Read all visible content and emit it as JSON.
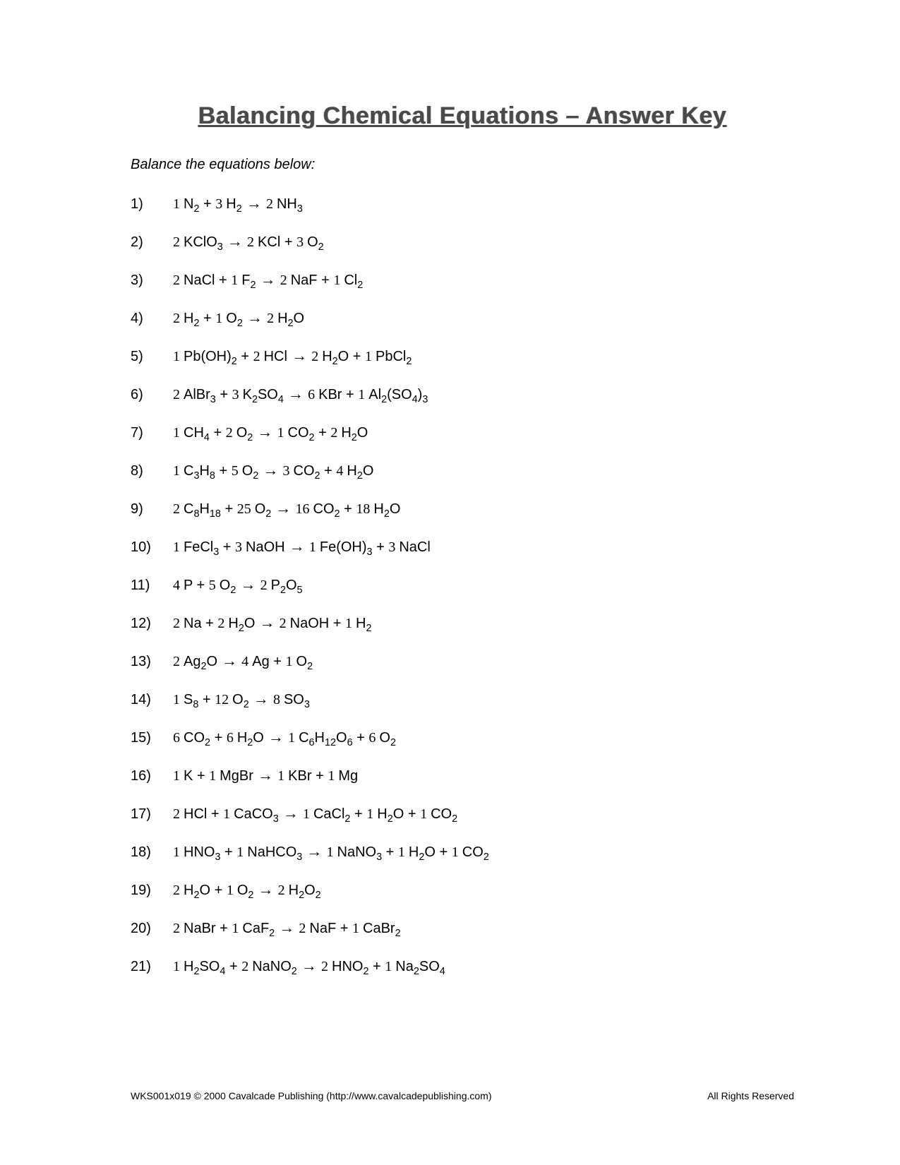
{
  "title": "Balancing Chemical Equations – Answer Key",
  "instruction": "Balance the equations below:",
  "typography": {
    "title_fontsize": 34,
    "title_color": "#4a4a4a",
    "body_fontsize": 20,
    "footer_fontsize": 14,
    "background_color": "#ffffff",
    "text_color": "#000000",
    "coefficient_font": "handwritten/cursive"
  },
  "equations": [
    {
      "num": "1)",
      "terms": [
        {
          "c": "1",
          "f": "N",
          "sub": "2"
        },
        {
          "op": "+"
        },
        {
          "c": "3",
          "f": "H",
          "sub": "2"
        },
        {
          "op": "→"
        },
        {
          "c": "2",
          "f": "NH",
          "sub": "3"
        }
      ]
    },
    {
      "num": "2)",
      "terms": [
        {
          "c": "2",
          "f": "KClO",
          "sub": "3"
        },
        {
          "op": "→"
        },
        {
          "c": "2",
          "f": "KCl"
        },
        {
          "op": "+"
        },
        {
          "c": "3",
          "f": "O",
          "sub": "2"
        }
      ]
    },
    {
      "num": "3)",
      "terms": [
        {
          "c": "2",
          "f": "NaCl"
        },
        {
          "op": "+"
        },
        {
          "c": "1",
          "f": "F",
          "sub": "2"
        },
        {
          "op": "→"
        },
        {
          "c": "2",
          "f": "NaF"
        },
        {
          "op": "+"
        },
        {
          "c": "1",
          "f": "Cl",
          "sub": "2"
        }
      ]
    },
    {
      "num": "4)",
      "terms": [
        {
          "c": "2",
          "f": "H",
          "sub": "2"
        },
        {
          "op": "+"
        },
        {
          "c": "1",
          "f": "O",
          "sub": "2"
        },
        {
          "op": "→"
        },
        {
          "c": "2",
          "f": "H",
          "sub": "2",
          "f2": "O"
        }
      ]
    },
    {
      "num": "5)",
      "terms": [
        {
          "c": "1",
          "f": "Pb(OH)",
          "sub": "2"
        },
        {
          "op": "+"
        },
        {
          "c": "2",
          "f": "HCl"
        },
        {
          "op": "→"
        },
        {
          "c": "2",
          "f": "H",
          "sub": "2",
          "f2": "O"
        },
        {
          "op": "+"
        },
        {
          "c": "1",
          "f": "PbCl",
          "sub": "2"
        }
      ]
    },
    {
      "num": "6)",
      "terms": [
        {
          "c": "2",
          "f": "AlBr",
          "sub": "3"
        },
        {
          "op": "+"
        },
        {
          "c": "3",
          "f": "K",
          "sub": "2",
          "f2": "SO",
          "sub2": "4"
        },
        {
          "op": "→"
        },
        {
          "c": "6",
          "f": "KBr"
        },
        {
          "op": "+"
        },
        {
          "c": "1",
          "f": "Al",
          "sub": "2",
          "f2": "(SO",
          "sub2": "4",
          "f3": ")",
          "sub3": "3"
        }
      ]
    },
    {
      "num": "7)",
      "terms": [
        {
          "c": "1",
          "f": "CH",
          "sub": "4"
        },
        {
          "op": "+"
        },
        {
          "c": "2",
          "f": "O",
          "sub": "2"
        },
        {
          "op": "→"
        },
        {
          "c": "1",
          "f": "CO",
          "sub": "2"
        },
        {
          "op": "+"
        },
        {
          "c": "2",
          "f": "H",
          "sub": "2",
          "f2": "O"
        }
      ]
    },
    {
      "num": "8)",
      "terms": [
        {
          "c": "1",
          "f": "C",
          "sub": "3",
          "f2": "H",
          "sub2": "8"
        },
        {
          "op": "+"
        },
        {
          "c": "5",
          "f": "O",
          "sub": "2"
        },
        {
          "op": "→"
        },
        {
          "c": "3",
          "f": "CO",
          "sub": "2"
        },
        {
          "op": "+"
        },
        {
          "c": "4",
          "f": "H",
          "sub": "2",
          "f2": "O"
        }
      ]
    },
    {
      "num": "9)",
      "terms": [
        {
          "c": "2",
          "f": "C",
          "sub": "8",
          "f2": "H",
          "sub2": "18"
        },
        {
          "op": "+"
        },
        {
          "c": "25",
          "f": "O",
          "sub": "2"
        },
        {
          "op": "→"
        },
        {
          "c": "16",
          "f": "CO",
          "sub": "2"
        },
        {
          "op": "+"
        },
        {
          "c": "18",
          "f": "H",
          "sub": "2",
          "f2": "O"
        }
      ]
    },
    {
      "num": "10)",
      "terms": [
        {
          "c": "1",
          "f": "FeCl",
          "sub": "3"
        },
        {
          "op": "+"
        },
        {
          "c": "3",
          "f": "NaOH"
        },
        {
          "op": "→"
        },
        {
          "c": "1",
          "f": "Fe(OH)",
          "sub": "3"
        },
        {
          "op": "+"
        },
        {
          "c": "3",
          "f": "NaCl"
        }
      ]
    },
    {
      "num": "11)",
      "terms": [
        {
          "c": "4",
          "f": "P"
        },
        {
          "op": "+"
        },
        {
          "c": "5",
          "f": "O",
          "sub": "2"
        },
        {
          "op": "→"
        },
        {
          "c": "2",
          "f": "P",
          "sub": "2",
          "f2": "O",
          "sub2": "5"
        }
      ]
    },
    {
      "num": "12)",
      "terms": [
        {
          "c": "2",
          "f": "Na"
        },
        {
          "op": "+"
        },
        {
          "c": "2",
          "f": "H",
          "sub": "2",
          "f2": "O"
        },
        {
          "op": "→"
        },
        {
          "c": "2",
          "f": "NaOH"
        },
        {
          "op": "+"
        },
        {
          "c": "1",
          "f": "H",
          "sub": "2"
        }
      ]
    },
    {
      "num": "13)",
      "terms": [
        {
          "c": "2",
          "f": "Ag",
          "sub": "2",
          "f2": "O"
        },
        {
          "op": "→"
        },
        {
          "c": "4",
          "f": "Ag"
        },
        {
          "op": "+"
        },
        {
          "c": "1",
          "f": "O",
          "sub": "2"
        }
      ]
    },
    {
      "num": "14)",
      "terms": [
        {
          "c": "1",
          "f": "S",
          "sub": "8"
        },
        {
          "op": "+"
        },
        {
          "c": "12",
          "f": "O",
          "sub": "2"
        },
        {
          "op": "→"
        },
        {
          "c": "8",
          "f": "SO",
          "sub": "3"
        }
      ]
    },
    {
      "num": "15)",
      "terms": [
        {
          "c": "6",
          "f": "CO",
          "sub": "2"
        },
        {
          "op": "+"
        },
        {
          "c": "6",
          "f": "H",
          "sub": "2",
          "f2": "O"
        },
        {
          "op": "→"
        },
        {
          "c": "1",
          "f": "C",
          "sub": "6",
          "f2": "H",
          "sub2": "12",
          "f3": "O",
          "sub3": "6"
        },
        {
          "op": "+"
        },
        {
          "c": "6",
          "f": "O",
          "sub": "2"
        }
      ]
    },
    {
      "num": "16)",
      "terms": [
        {
          "c": "1",
          "f": "K"
        },
        {
          "op": "+"
        },
        {
          "c": "1",
          "f": "MgBr"
        },
        {
          "op": "→"
        },
        {
          "c": "1",
          "f": "KBr"
        },
        {
          "op": "+"
        },
        {
          "c": "1",
          "f": "Mg"
        }
      ]
    },
    {
      "num": "17)",
      "terms": [
        {
          "c": "2",
          "f": "HCl"
        },
        {
          "op": "+"
        },
        {
          "c": "1",
          "f": "CaCO",
          "sub": "3"
        },
        {
          "op": "→"
        },
        {
          "c": "1",
          "f": "CaCl",
          "sub": "2"
        },
        {
          "op": "+"
        },
        {
          "c": "1",
          "f": "H",
          "sub": "2",
          "f2": "O"
        },
        {
          "op": "+"
        },
        {
          "c": "1",
          "f": "CO",
          "sub": "2"
        }
      ]
    },
    {
      "num": "18)",
      "terms": [
        {
          "c": "1",
          "f": "HNO",
          "sub": "3"
        },
        {
          "op": "+"
        },
        {
          "c": "1",
          "f": "NaHCO",
          "sub": "3"
        },
        {
          "op": "→"
        },
        {
          "c": "1",
          "f": "NaNO",
          "sub": "3"
        },
        {
          "op": "+"
        },
        {
          "c": "1",
          "f": "H",
          "sub": "2",
          "f2": "O"
        },
        {
          "op": "+"
        },
        {
          "c": "1",
          "f": "CO",
          "sub": "2"
        }
      ]
    },
    {
      "num": "19)",
      "terms": [
        {
          "c": "2",
          "f": "H",
          "sub": "2",
          "f2": "O"
        },
        {
          "op": "+"
        },
        {
          "c": "1",
          "f": "O",
          "sub": "2"
        },
        {
          "op": "→"
        },
        {
          "c": "2",
          "f": "H",
          "sub": "2",
          "f2": "O",
          "sub2": "2"
        }
      ]
    },
    {
      "num": "20)",
      "terms": [
        {
          "c": "2",
          "f": "NaBr"
        },
        {
          "op": "+"
        },
        {
          "c": "1",
          "f": "CaF",
          "sub": "2"
        },
        {
          "op": "→"
        },
        {
          "c": "2",
          "f": "NaF"
        },
        {
          "op": "+"
        },
        {
          "c": "1",
          "f": "CaBr",
          "sub": "2"
        }
      ]
    },
    {
      "num": "21)",
      "terms": [
        {
          "c": "1",
          "f": "H",
          "sub": "2",
          "f2": "SO",
          "sub2": "4"
        },
        {
          "op": "+"
        },
        {
          "c": "2",
          "f": "NaNO",
          "sub": "2"
        },
        {
          "op": "→"
        },
        {
          "c": "2",
          "f": "HNO",
          "sub": "2"
        },
        {
          "op": "+"
        },
        {
          "c": "1",
          "f": "Na",
          "sub": "2",
          "f2": "SO",
          "sub2": "4"
        }
      ]
    }
  ],
  "footer": {
    "left": "WKS001x019 © 2000 Cavalcade Publishing (http://www.cavalcadepublishing.com)",
    "right": "All Rights Reserved"
  }
}
